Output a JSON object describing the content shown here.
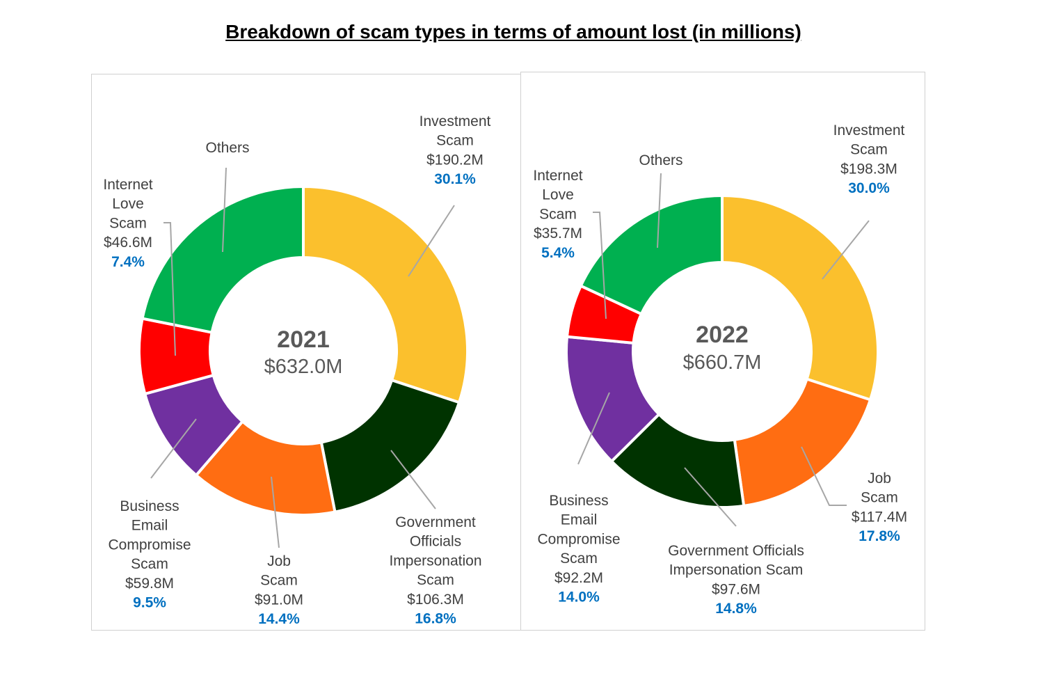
{
  "title": "Breakdown of scam types in terms of amount lost (in millions)",
  "chart_data": [
    {
      "type": "donut",
      "center_title": "2021",
      "center_total": "$632.0M",
      "slices": [
        {
          "name_lines": [
            "Investment",
            "Scam"
          ],
          "amount": "$190.2M",
          "value": 190.2,
          "pct": "30.1%",
          "color": "#fbc02d"
        },
        {
          "name_lines": [
            "Government",
            "Officials",
            "Impersonation",
            "Scam"
          ],
          "amount": "$106.3M",
          "value": 106.3,
          "pct": "16.8%",
          "color": "#003300"
        },
        {
          "name_lines": [
            "Job",
            "Scam"
          ],
          "amount": "$91.0M",
          "value": 91.0,
          "pct": "14.4%",
          "color": "#ff6d12"
        },
        {
          "name_lines": [
            "Business",
            "Email",
            "Compromise",
            "Scam"
          ],
          "amount": "$59.8M",
          "value": 59.8,
          "pct": "9.5%",
          "color": "#7030a0"
        },
        {
          "name_lines": [
            "Internet",
            "Love",
            "Scam"
          ],
          "amount": "$46.6M",
          "value": 46.6,
          "pct": "7.4%",
          "color": "#ff0000"
        },
        {
          "name_lines": [
            "Others"
          ],
          "amount": "",
          "value": 138.1,
          "pct": "",
          "color": "#00b050"
        }
      ]
    },
    {
      "type": "donut",
      "center_title": "2022",
      "center_total": "$660.7M",
      "slices": [
        {
          "name_lines": [
            "Investment",
            "Scam"
          ],
          "amount": "$198.3M",
          "value": 198.3,
          "pct": "30.0%",
          "color": "#fbc02d"
        },
        {
          "name_lines": [
            "Job",
            "Scam"
          ],
          "amount": "$117.4M",
          "value": 117.4,
          "pct": "17.8%",
          "color": "#ff6d12"
        },
        {
          "name_lines": [
            "Government Officials",
            "Impersonation Scam"
          ],
          "amount": "$97.6M",
          "value": 97.6,
          "pct": "14.8%",
          "color": "#003300"
        },
        {
          "name_lines": [
            "Business",
            "Email",
            "Compromise",
            "Scam"
          ],
          "amount": "$92.2M",
          "value": 92.2,
          "pct": "14.0%",
          "color": "#7030a0"
        },
        {
          "name_lines": [
            "Internet",
            "Love",
            "Scam"
          ],
          "amount": "$35.7M",
          "value": 35.7,
          "pct": "5.4%",
          "color": "#ff0000"
        },
        {
          "name_lines": [
            "Others"
          ],
          "amount": "",
          "value": 119.5,
          "pct": "",
          "color": "#00b050"
        }
      ]
    }
  ]
}
